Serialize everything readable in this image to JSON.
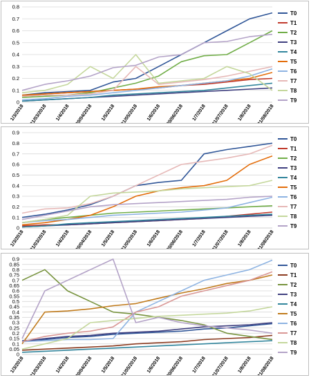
{
  "chart_data": [
    {
      "type": "line",
      "ylim": [
        0,
        0.8
      ],
      "yticks": [
        "0",
        "0.1",
        "0.2",
        "0.3",
        "0.4",
        "0.5",
        "0.6",
        "0.7",
        "0.8"
      ],
      "grid": "horizontal",
      "legend_position": "right",
      "categories": [
        "1/3/2018",
        "31/03/2018",
        "1/4/2018",
        "30/04/2018",
        "1/5/2018",
        "31/05/2018",
        "1/6/2018",
        "30/06/2018",
        "1/7/2018",
        "31/07/2018",
        "1/8/2018",
        "31/08/2018"
      ],
      "series": [
        {
          "name": "T0",
          "color": "#2f5597",
          "values": [
            0.06,
            0.08,
            0.09,
            0.1,
            0.17,
            0.2,
            0.3,
            0.4,
            0.5,
            0.6,
            0.7,
            0.75
          ]
        },
        {
          "name": "T1",
          "color": "#c0392b",
          "values": [
            0.05,
            0.07,
            0.08,
            0.09,
            0.1,
            0.11,
            0.12,
            0.14,
            0.15,
            0.17,
            0.19,
            0.2
          ]
        },
        {
          "name": "T2",
          "color": "#70ad47",
          "values": [
            0.04,
            0.05,
            0.06,
            0.08,
            0.12,
            0.16,
            0.22,
            0.34,
            0.39,
            0.4,
            0.5,
            0.6
          ]
        },
        {
          "name": "T3",
          "color": "#3f3f7f",
          "values": [
            0.01,
            0.02,
            0.03,
            0.04,
            0.05,
            0.06,
            0.07,
            0.08,
            0.09,
            0.1,
            0.11,
            0.12
          ]
        },
        {
          "name": "T4",
          "color": "#31859c",
          "values": [
            0.01,
            0.02,
            0.03,
            0.04,
            0.06,
            0.07,
            0.08,
            0.09,
            0.1,
            0.12,
            0.14,
            0.16
          ]
        },
        {
          "name": "T5",
          "color": "#e36c09",
          "values": [
            0.06,
            0.07,
            0.08,
            0.09,
            0.1,
            0.11,
            0.13,
            0.14,
            0.16,
            0.18,
            0.2,
            0.25
          ]
        },
        {
          "name": "T6",
          "color": "#8db3e2",
          "values": [
            0.02,
            0.03,
            0.05,
            0.06,
            0.08,
            0.1,
            0.12,
            0.14,
            0.16,
            0.18,
            0.22,
            0.28
          ]
        },
        {
          "name": "T7",
          "color": "#e6b8b7",
          "values": [
            0.05,
            0.06,
            0.06,
            0.07,
            0.1,
            0.3,
            0.15,
            0.17,
            0.19,
            0.22,
            0.26,
            0.3
          ]
        },
        {
          "name": "T8",
          "color": "#c4d79b",
          "values": [
            0.08,
            0.1,
            0.15,
            0.3,
            0.2,
            0.4,
            0.16,
            0.18,
            0.2,
            0.3,
            0.24,
            0.1
          ]
        },
        {
          "name": "T9",
          "color": "#b3a2c7",
          "values": [
            0.1,
            0.15,
            0.18,
            0.22,
            0.29,
            0.31,
            0.38,
            0.4,
            0.5,
            0.51,
            0.55,
            0.57
          ]
        }
      ]
    },
    {
      "type": "line",
      "ylim": [
        0,
        0.9
      ],
      "yticks": [
        "0",
        "0.1",
        "0.2",
        "0.3",
        "0.4",
        "0.5",
        "0.6",
        "0.7",
        "0.8",
        "0.9"
      ],
      "grid": "horizontal",
      "legend_position": "right",
      "categories": [
        "1/3/2018",
        "31/03/2018",
        "1/4/2018",
        "30/04/2018",
        "1/5/2018",
        "31/05/2018",
        "1/6/2018",
        "30/06/2018",
        "1/7/2018",
        "31/07/2018",
        "1/8/2018",
        "31/08/2018"
      ],
      "series": [
        {
          "name": "T0",
          "color": "#2f5597",
          "values": [
            0.1,
            0.13,
            0.17,
            0.22,
            0.3,
            0.4,
            0.43,
            0.45,
            0.7,
            0.74,
            0.77,
            0.8
          ]
        },
        {
          "name": "T1",
          "color": "#c0392b",
          "values": [
            0.02,
            0.03,
            0.03,
            0.04,
            0.05,
            0.06,
            0.07,
            0.08,
            0.09,
            0.11,
            0.13,
            0.15
          ]
        },
        {
          "name": "T2",
          "color": "#70ad47",
          "values": [
            0.05,
            0.08,
            0.1,
            0.12,
            0.14,
            0.15,
            0.16,
            0.17,
            0.18,
            0.19,
            0.2,
            0.21
          ]
        },
        {
          "name": "T3",
          "color": "#3f3f7f",
          "values": [
            0.01,
            0.02,
            0.03,
            0.04,
            0.05,
            0.06,
            0.07,
            0.08,
            0.09,
            0.1,
            0.11,
            0.12
          ]
        },
        {
          "name": "T4",
          "color": "#31859c",
          "values": [
            0.01,
            0.02,
            0.04,
            0.05,
            0.06,
            0.07,
            0.08,
            0.09,
            0.1,
            0.11,
            0.12,
            0.13
          ]
        },
        {
          "name": "T5",
          "color": "#e36c09",
          "values": [
            0.03,
            0.05,
            0.08,
            0.12,
            0.2,
            0.3,
            0.35,
            0.38,
            0.4,
            0.45,
            0.6,
            0.68
          ]
        },
        {
          "name": "T6",
          "color": "#8db3e2",
          "values": [
            0.05,
            0.07,
            0.08,
            0.1,
            0.12,
            0.13,
            0.14,
            0.15,
            0.17,
            0.19,
            0.24,
            0.29
          ]
        },
        {
          "name": "T7",
          "color": "#e6b8b7",
          "values": [
            0.14,
            0.18,
            0.19,
            0.23,
            0.3,
            0.4,
            0.5,
            0.6,
            0.63,
            0.66,
            0.7,
            0.78
          ]
        },
        {
          "name": "T8",
          "color": "#c4d79b",
          "values": [
            0.05,
            0.08,
            0.12,
            0.3,
            0.33,
            0.34,
            0.35,
            0.37,
            0.38,
            0.39,
            0.4,
            0.45
          ]
        },
        {
          "name": "T9",
          "color": "#b3a2c7",
          "values": [
            0.08,
            0.12,
            0.16,
            0.2,
            0.22,
            0.23,
            0.24,
            0.25,
            0.26,
            0.27,
            0.29,
            0.3
          ]
        }
      ]
    },
    {
      "type": "line",
      "ylim": [
        0,
        0.9
      ],
      "yticks": [
        "0",
        "0.05",
        "0.1",
        "0.15",
        "0.2",
        "0.25",
        "0.3",
        "0.35",
        "0.4",
        "0.45",
        "0.5",
        "0.55",
        "0.6",
        "0.65",
        "0.7",
        "0.75",
        "0.8",
        "0.85",
        "0.9"
      ],
      "grid": "horizontal",
      "legend_position": "right",
      "categories": [
        "1/3/2018",
        "31/03/2018",
        "1/4/2018",
        "30/04/2018",
        "1/5/2018",
        "31/05/2018",
        "1/6/2018",
        "30/06/2018",
        "1/7/2018",
        "31/07/2018",
        "1/8/2018",
        "31/08/2018"
      ],
      "series": [
        {
          "name": "T0",
          "color": "#2f5597",
          "values": [
            0.13,
            0.14,
            0.16,
            0.17,
            0.19,
            0.2,
            0.21,
            0.22,
            0.24,
            0.25,
            0.27,
            0.29
          ]
        },
        {
          "name": "T1",
          "color": "#8b3a1f",
          "values": [
            0.04,
            0.05,
            0.06,
            0.07,
            0.08,
            0.1,
            0.11,
            0.12,
            0.14,
            0.15,
            0.16,
            0.18
          ]
        },
        {
          "name": "T2",
          "color": "#76923c",
          "values": [
            0.7,
            0.8,
            0.6,
            0.5,
            0.4,
            0.38,
            0.35,
            0.32,
            0.28,
            0.2,
            0.17,
            0.14
          ]
        },
        {
          "name": "T3",
          "color": "#3f3f7f",
          "values": [
            0.12,
            0.15,
            0.17,
            0.18,
            0.2,
            0.21,
            0.22,
            0.24,
            0.26,
            0.27,
            0.28,
            0.3
          ]
        },
        {
          "name": "T4",
          "color": "#31859c",
          "values": [
            0.02,
            0.03,
            0.04,
            0.05,
            0.06,
            0.07,
            0.08,
            0.09,
            0.1,
            0.11,
            0.12,
            0.13
          ]
        },
        {
          "name": "T5",
          "color": "#c07a1a",
          "values": [
            0.1,
            0.4,
            0.41,
            0.43,
            0.46,
            0.48,
            0.53,
            0.58,
            0.62,
            0.67,
            0.7,
            0.75
          ]
        },
        {
          "name": "T6",
          "color": "#8db3e2",
          "values": [
            0.12,
            0.13,
            0.14,
            0.14,
            0.15,
            0.4,
            0.5,
            0.6,
            0.7,
            0.75,
            0.8,
            0.89
          ]
        },
        {
          "name": "T7",
          "color": "#d99694",
          "values": [
            0.12,
            0.17,
            0.2,
            0.22,
            0.26,
            0.4,
            0.45,
            0.55,
            0.6,
            0.65,
            0.7,
            0.78
          ]
        },
        {
          "name": "T8",
          "color": "#c4d79b",
          "values": [
            0.05,
            0.1,
            0.15,
            0.3,
            0.32,
            0.34,
            0.36,
            0.37,
            0.38,
            0.39,
            0.41,
            0.45
          ]
        },
        {
          "name": "T9",
          "color": "#b3a2c7",
          "values": [
            0.15,
            0.6,
            0.7,
            0.8,
            0.9,
            0.3,
            0.35,
            0.3,
            0.27,
            0.25,
            0.23,
            0.2
          ]
        }
      ]
    }
  ]
}
